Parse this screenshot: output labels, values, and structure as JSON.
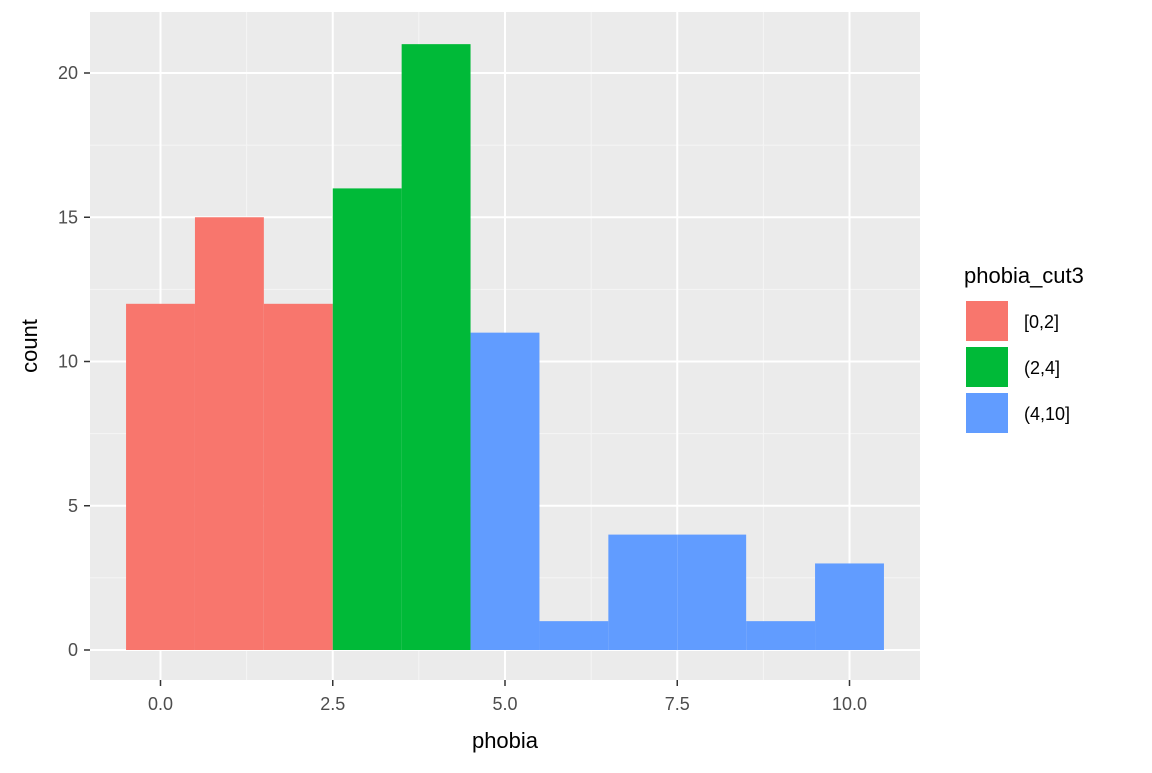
{
  "chart_data": {
    "type": "bar",
    "xlabel": "phobia",
    "ylabel": "count",
    "xlim": [
      -0.5,
      10.5
    ],
    "ylim": [
      0,
      21
    ],
    "x_ticks": [
      "0.0",
      "2.5",
      "5.0",
      "7.5",
      "10.0"
    ],
    "y_ticks": [
      "0",
      "5",
      "10",
      "15",
      "20"
    ],
    "grid": true,
    "legend_position": "right",
    "legend": {
      "title": "phobia_cut3",
      "entries": [
        {
          "label": "[0,2]",
          "color": "#F8766D"
        },
        {
          "label": "(2,4]",
          "color": "#00BA38"
        },
        {
          "label": "(4,10]",
          "color": "#619CFF"
        }
      ]
    },
    "series": [
      {
        "name": "[0,2]",
        "color": "#F8766D",
        "points": [
          {
            "x": 0,
            "y": 12
          },
          {
            "x": 1,
            "y": 15
          },
          {
            "x": 2,
            "y": 12
          }
        ]
      },
      {
        "name": "(2,4]",
        "color": "#00BA38",
        "points": [
          {
            "x": 3,
            "y": 16
          },
          {
            "x": 4,
            "y": 21
          }
        ]
      },
      {
        "name": "(4,10]",
        "color": "#619CFF",
        "points": [
          {
            "x": 5,
            "y": 11
          },
          {
            "x": 6,
            "y": 1
          },
          {
            "x": 7,
            "y": 4
          },
          {
            "x": 8,
            "y": 4
          },
          {
            "x": 9,
            "y": 1
          },
          {
            "x": 10,
            "y": 3
          }
        ]
      }
    ]
  }
}
